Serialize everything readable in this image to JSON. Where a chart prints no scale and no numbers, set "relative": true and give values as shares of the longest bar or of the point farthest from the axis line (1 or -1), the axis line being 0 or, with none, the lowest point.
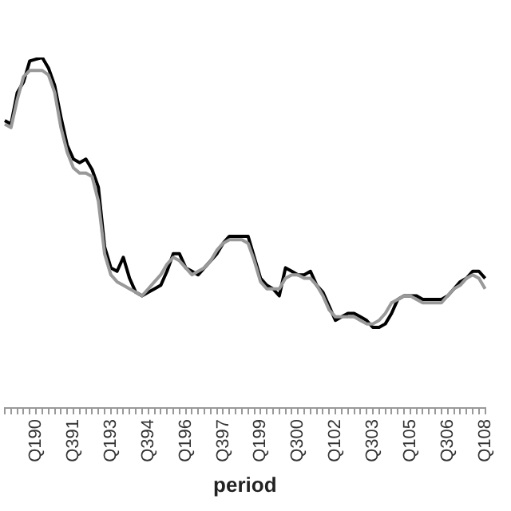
{
  "chart_data": {
    "type": "line",
    "relative": true,
    "xlabel": "period",
    "marker": "none",
    "line_style": "solid",
    "legend": false,
    "categories": [
      null,
      null,
      null,
      null,
      null,
      "Q190",
      null,
      null,
      null,
      null,
      null,
      "Q391",
      null,
      null,
      null,
      null,
      null,
      "Q193",
      null,
      null,
      null,
      null,
      null,
      "Q394",
      null,
      null,
      null,
      null,
      null,
      "Q196",
      null,
      null,
      null,
      null,
      null,
      "Q397",
      null,
      null,
      null,
      null,
      null,
      "Q199",
      null,
      null,
      null,
      null,
      null,
      "Q300",
      null,
      null,
      null,
      null,
      null,
      "Q102",
      null,
      null,
      null,
      null,
      null,
      "Q303",
      null,
      null,
      null,
      null,
      null,
      "Q105",
      null,
      null,
      null,
      null,
      null,
      "Q306",
      null,
      null,
      null,
      null,
      null,
      "Q108"
    ],
    "series": [
      {
        "color": "#999999",
        "values": [
          0.81,
          0.8,
          0.88,
          0.945,
          0.963,
          0.963,
          0.963,
          0.95,
          0.9,
          0.8,
          0.73,
          0.685,
          0.67,
          0.67,
          0.66,
          0.59,
          0.44,
          0.38,
          0.36,
          0.35,
          0.34,
          0.33,
          0.32,
          0.34,
          0.36,
          0.38,
          0.41,
          0.43,
          0.42,
          0.4,
          0.38,
          0.39,
          0.4,
          0.42,
          0.45,
          0.47,
          0.48,
          0.48,
          0.48,
          0.47,
          0.42,
          0.36,
          0.34,
          0.34,
          0.34,
          0.37,
          0.38,
          0.38,
          0.37,
          0.37,
          0.35,
          0.32,
          0.28,
          0.26,
          0.26,
          0.26,
          0.26,
          0.25,
          0.24,
          0.24,
          0.25,
          0.27,
          0.3,
          0.31,
          0.32,
          0.32,
          0.31,
          0.3,
          0.3,
          0.3,
          0.3,
          0.32,
          0.34,
          0.35,
          0.37,
          0.38,
          0.37,
          0.34
        ]
      },
      {
        "color": "#000000",
        "values": [
          0.82,
          0.81,
          0.9,
          0.93,
          0.99,
          0.995,
          1,
          0.97,
          0.92,
          0.83,
          0.75,
          0.71,
          0.7,
          0.71,
          0.68,
          0.63,
          0.46,
          0.4,
          0.39,
          0.43,
          0.37,
          0.33,
          0.32,
          0.33,
          0.34,
          0.35,
          0.39,
          0.44,
          0.44,
          0.4,
          0.39,
          0.38,
          0.4,
          0.42,
          0.44,
          0.47,
          0.49,
          0.49,
          0.49,
          0.49,
          0.43,
          0.37,
          0.35,
          0.34,
          0.32,
          0.4,
          0.39,
          0.38,
          0.38,
          0.39,
          0.35,
          0.33,
          0.29,
          0.25,
          0.26,
          0.27,
          0.27,
          0.26,
          0.25,
          0.23,
          0.23,
          0.24,
          0.27,
          0.31,
          0.32,
          0.32,
          0.32,
          0.31,
          0.31,
          0.31,
          0.31,
          0.32,
          0.34,
          0.36,
          0.37,
          0.39,
          0.39,
          0.37
        ]
      }
    ]
  }
}
